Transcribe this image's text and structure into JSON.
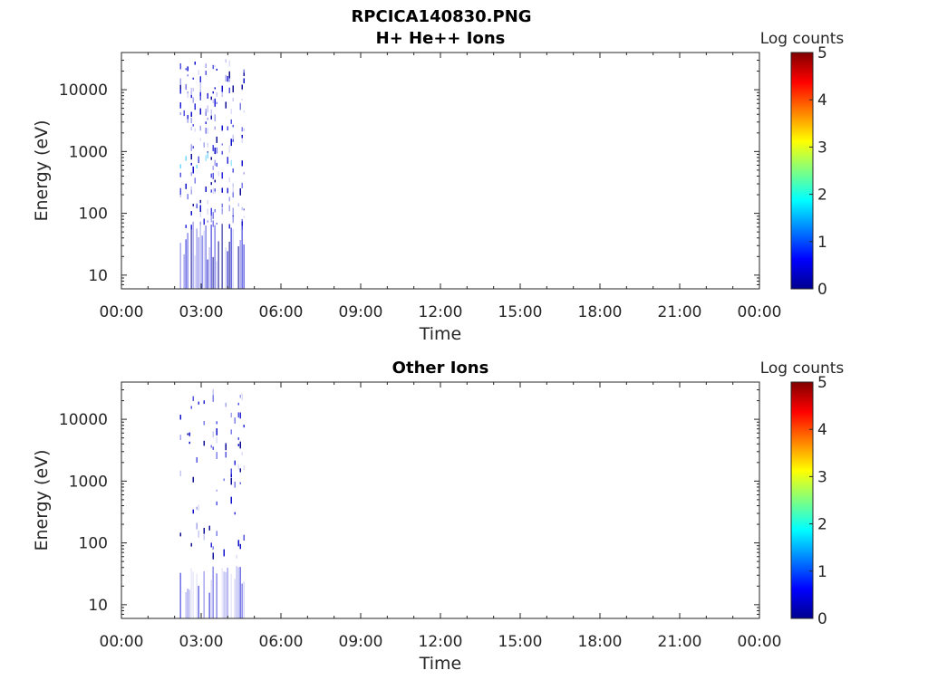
{
  "figure_title": "RPCICA140830.PNG",
  "chart_data": [
    {
      "type": "heatmap",
      "title": "H+ He++ Ions",
      "xlabel": "Time",
      "ylabel": "Energy (eV)",
      "x_ticks": [
        "00:00",
        "03:00",
        "06:00",
        "09:00",
        "12:00",
        "15:00",
        "18:00",
        "21:00",
        "00:00"
      ],
      "xlim_hours": [
        0,
        24
      ],
      "y_scale": "log",
      "y_ticks": [
        10,
        100,
        1000,
        10000
      ],
      "y_tick_labels": [
        "10",
        "100",
        "1000",
        "10000"
      ],
      "ylim": [
        6,
        40000
      ],
      "colorbar": {
        "label": "Log counts",
        "range": [
          0,
          5
        ],
        "ticks": [
          "0",
          "1",
          "2",
          "3",
          "4",
          "5"
        ],
        "colormap": "jet"
      },
      "data_extent_hours": [
        2.2,
        4.6
      ],
      "data_extent_energy_eV": [
        6,
        40000
      ]
    },
    {
      "type": "heatmap",
      "title": "Other Ions",
      "xlabel": "Time",
      "ylabel": "Energy (eV)",
      "x_ticks": [
        "00:00",
        "03:00",
        "06:00",
        "09:00",
        "12:00",
        "15:00",
        "18:00",
        "21:00",
        "00:00"
      ],
      "xlim_hours": [
        0,
        24
      ],
      "y_scale": "log",
      "y_ticks": [
        10,
        100,
        1000,
        10000
      ],
      "y_tick_labels": [
        "10",
        "100",
        "1000",
        "10000"
      ],
      "ylim": [
        6,
        40000
      ],
      "colorbar": {
        "label": "Log counts",
        "range": [
          0,
          5
        ],
        "ticks": [
          "0",
          "1",
          "2",
          "3",
          "4",
          "5"
        ],
        "colormap": "jet"
      },
      "data_extent_hours": [
        2.2,
        4.6
      ],
      "data_extent_energy_eV": [
        6,
        40000
      ]
    }
  ]
}
